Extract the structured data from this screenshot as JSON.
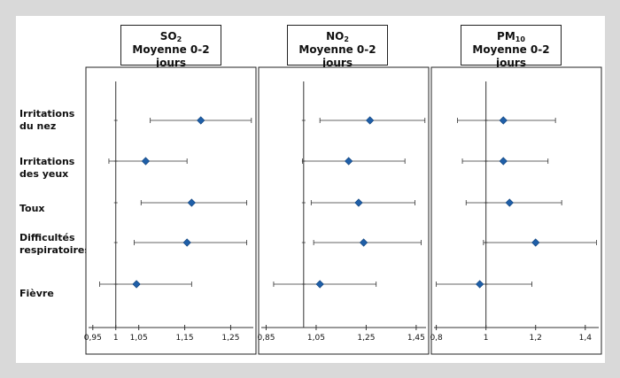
{
  "chart_data": [
    {
      "type": "forest",
      "pollutant": "SO",
      "pollutant_sub": "2",
      "subtitle": "Moyenne 0-2 jours",
      "xlim": [
        0.935,
        1.305
      ],
      "reference": 1,
      "ticks": [
        0.95,
        1,
        1.05,
        1.15,
        1.25
      ],
      "tick_labels": [
        "0,95",
        "1",
        "1,05",
        "1,15",
        "1,25"
      ],
      "points": [
        {
          "outcome": "Irritations du nez",
          "estimate": 1.185,
          "lower": 1.075,
          "upper": 1.295
        },
        {
          "outcome": "Irritations des yeux",
          "estimate": 1.065,
          "lower": 0.985,
          "upper": 1.155
        },
        {
          "outcome": "Toux",
          "estimate": 1.165,
          "lower": 1.055,
          "upper": 1.285
        },
        {
          "outcome": "Difficultés respiratoires",
          "estimate": 1.155,
          "lower": 1.04,
          "upper": 1.285
        },
        {
          "outcome": "Fièvre",
          "estimate": 1.045,
          "lower": 0.965,
          "upper": 1.165
        }
      ]
    },
    {
      "type": "forest",
      "pollutant": "NO",
      "pollutant_sub": "2",
      "subtitle": "Moyenne 0-2 jours",
      "xlim": [
        0.82,
        1.5
      ],
      "reference": 1,
      "ticks": [
        0.85,
        1.05,
        1.25,
        1.45
      ],
      "tick_labels": [
        "0,85",
        "1,05",
        "1,25",
        "1,45"
      ],
      "points": [
        {
          "outcome": "Irritations du nez",
          "estimate": 1.265,
          "lower": 1.065,
          "upper": 1.485
        },
        {
          "outcome": "Irritations des yeux",
          "estimate": 1.18,
          "lower": 0.995,
          "upper": 1.405
        },
        {
          "outcome": "Toux",
          "estimate": 1.22,
          "lower": 1.03,
          "upper": 1.445
        },
        {
          "outcome": "Difficultés respiratoires",
          "estimate": 1.24,
          "lower": 1.04,
          "upper": 1.47
        },
        {
          "outcome": "Fièvre",
          "estimate": 1.065,
          "lower": 0.88,
          "upper": 1.29
        }
      ]
    },
    {
      "type": "forest",
      "pollutant": "PM",
      "pollutant_sub": "10",
      "subtitle": "Moyenne 0-2 jours",
      "xlim": [
        0.78,
        1.465
      ],
      "reference": 1,
      "ticks": [
        0.8,
        1,
        1.2,
        1.4
      ],
      "tick_labels": [
        "0,8",
        "1",
        "1,2",
        "1,4"
      ],
      "points": [
        {
          "outcome": "Irritations du nez",
          "estimate": 1.07,
          "lower": 0.885,
          "upper": 1.28
        },
        {
          "outcome": "Irritations des yeux",
          "estimate": 1.07,
          "lower": 0.905,
          "upper": 1.25
        },
        {
          "outcome": "Toux",
          "estimate": 1.095,
          "lower": 0.92,
          "upper": 1.305
        },
        {
          "outcome": "Difficultés respiratoires",
          "estimate": 1.2,
          "lower": 0.99,
          "upper": 1.445
        },
        {
          "outcome": "Fièvre",
          "estimate": 0.975,
          "lower": 0.8,
          "upper": 1.185
        }
      ]
    }
  ],
  "row_labels": [
    "Irritations\ndu nez",
    "Irritations\ndes yeux",
    "Toux",
    "Difficultés\nrespiratoires",
    "Fièvre"
  ],
  "colors": {
    "marker": "#1f5fa8",
    "marker_edge": "#0d3f78",
    "line": "#333333",
    "frame": "#222222",
    "background": "#d9d9d9"
  }
}
